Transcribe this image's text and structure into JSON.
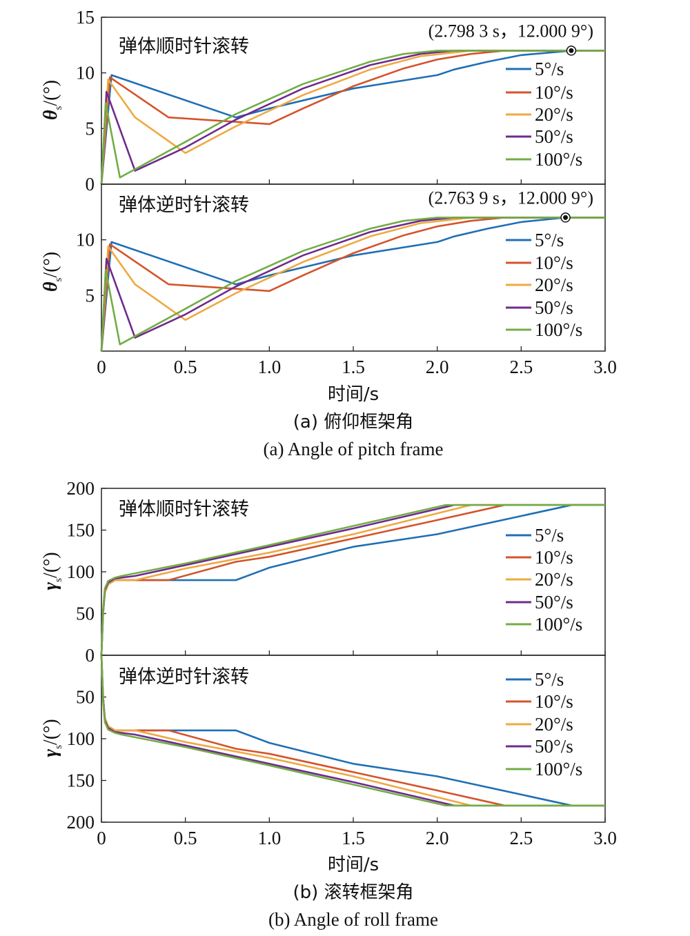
{
  "figure": {
    "caption_a_cn": "(a) 俯仰框架角",
    "caption_a_en": "(a) Angle of pitch frame",
    "caption_b_cn": "(b) 滚转框架角",
    "caption_b_en": "(b) Angle of roll frame",
    "xlabel": "时间/s"
  },
  "colors": {
    "5°/s": "#1f6fb5",
    "10°/s": "#d4532a",
    "20°/s": "#eea942",
    "50°/s": "#6f2a8e",
    "100°/s": "#72ad45"
  },
  "chart_data": [
    {
      "type": "line",
      "title": "弹体顺时针滚转",
      "ylabel_symbol": "θ",
      "ylabel_sub": "s",
      "ylabel_unit": "/(°)",
      "xlim": [
        0,
        3.0
      ],
      "ylim": [
        0,
        15
      ],
      "xticks": [
        "0",
        "0.5",
        "1.0",
        "1.5",
        "2.0",
        "2.5",
        "3.0"
      ],
      "xtick_values": [
        0,
        0.5,
        1.0,
        1.5,
        2.0,
        2.5,
        3.0
      ],
      "yticks": [
        "0",
        "5",
        "10",
        "15"
      ],
      "ytick_values": [
        0,
        5,
        10,
        15
      ],
      "legend_position": "right",
      "annotation": {
        "text": "(2.798 3 s，12.000 9°)",
        "x": 2.7983,
        "y": 12.0009
      },
      "series": [
        {
          "name": "5°/s",
          "x": [
            0,
            0.06,
            0.8,
            1.0,
            1.5,
            2.0,
            2.1,
            2.3,
            2.5,
            2.8,
            3.0
          ],
          "y": [
            0,
            9.8,
            6.0,
            6.8,
            8.6,
            9.8,
            10.3,
            11.0,
            11.6,
            12.0,
            12.0
          ]
        },
        {
          "name": "10°/s",
          "x": [
            0,
            0.05,
            0.4,
            1.0,
            1.2,
            1.5,
            1.8,
            2.0,
            2.2,
            2.4,
            3.0
          ],
          "y": [
            0,
            9.6,
            6.0,
            5.4,
            6.8,
            8.8,
            10.4,
            11.2,
            11.7,
            12.0,
            12.0
          ]
        },
        {
          "name": "20°/s",
          "x": [
            0,
            0.04,
            0.2,
            0.5,
            0.8,
            1.2,
            1.6,
            1.9,
            2.2,
            3.0
          ],
          "y": [
            0,
            9.4,
            6.0,
            2.8,
            5.2,
            8.0,
            10.3,
            11.5,
            12.0,
            12.0
          ]
        },
        {
          "name": "50°/s",
          "x": [
            0,
            0.03,
            0.2,
            0.5,
            0.8,
            1.2,
            1.6,
            1.9,
            2.1,
            3.0
          ],
          "y": [
            0,
            8.3,
            1.2,
            3.3,
            5.8,
            8.6,
            10.7,
            11.7,
            12.0,
            12.0
          ]
        },
        {
          "name": "100°/s",
          "x": [
            0,
            0.025,
            0.11,
            0.5,
            0.8,
            1.2,
            1.6,
            1.8,
            2.0,
            3.0
          ],
          "y": [
            0,
            7.3,
            0.6,
            3.8,
            6.3,
            9.0,
            11.0,
            11.7,
            12.0,
            12.0
          ]
        }
      ]
    },
    {
      "type": "line",
      "title": "弹体逆时针滚转",
      "ylabel_symbol": "θ",
      "ylabel_sub": "s",
      "ylabel_unit": "/(°)",
      "xlim": [
        0,
        3.0
      ],
      "ylim": [
        0,
        15
      ],
      "xticks": [
        "0",
        "0.5",
        "1.0",
        "1.5",
        "2.0",
        "2.5",
        "3.0"
      ],
      "xtick_values": [
        0,
        0.5,
        1.0,
        1.5,
        2.0,
        2.5,
        3.0
      ],
      "yticks": [
        "5",
        "10"
      ],
      "ytick_values": [
        5,
        10
      ],
      "legend_position": "right",
      "annotation": {
        "text": "(2.763 9 s，12.000 9°)",
        "x": 2.7639,
        "y": 12.0009
      },
      "series": [
        {
          "name": "5°/s",
          "x": [
            0,
            0.06,
            0.8,
            1.0,
            1.5,
            2.0,
            2.1,
            2.3,
            2.5,
            2.76,
            3.0
          ],
          "y": [
            0,
            9.8,
            6.0,
            6.8,
            8.6,
            9.8,
            10.3,
            11.0,
            11.6,
            12.0,
            12.0
          ]
        },
        {
          "name": "10°/s",
          "x": [
            0,
            0.05,
            0.4,
            1.0,
            1.2,
            1.5,
            1.8,
            2.0,
            2.2,
            2.4,
            3.0
          ],
          "y": [
            0,
            9.6,
            6.0,
            5.4,
            6.8,
            8.8,
            10.4,
            11.2,
            11.7,
            12.0,
            12.0
          ]
        },
        {
          "name": "20°/s",
          "x": [
            0,
            0.04,
            0.2,
            0.5,
            0.8,
            1.2,
            1.6,
            1.9,
            2.2,
            3.0
          ],
          "y": [
            0,
            9.4,
            6.0,
            2.8,
            5.2,
            8.0,
            10.3,
            11.5,
            12.0,
            12.0
          ]
        },
        {
          "name": "50°/s",
          "x": [
            0,
            0.03,
            0.2,
            0.5,
            0.8,
            1.2,
            1.6,
            1.9,
            2.1,
            3.0
          ],
          "y": [
            0,
            8.3,
            1.2,
            3.3,
            5.8,
            8.6,
            10.7,
            11.7,
            12.0,
            12.0
          ]
        },
        {
          "name": "100°/s",
          "x": [
            0,
            0.025,
            0.11,
            0.5,
            0.8,
            1.2,
            1.6,
            1.8,
            2.0,
            3.0
          ],
          "y": [
            0,
            7.3,
            0.6,
            3.8,
            6.3,
            9.0,
            11.0,
            11.7,
            12.0,
            12.0
          ]
        }
      ]
    },
    {
      "type": "line",
      "title": "弹体顺时针滚转",
      "ylabel_symbol": "γ",
      "ylabel_sub": "s",
      "ylabel_unit": "/(°)",
      "xlim": [
        0,
        3.0
      ],
      "ylim": [
        0,
        200
      ],
      "xticks": [
        "0",
        "0.5",
        "1.0",
        "1.5",
        "2.0",
        "2.5",
        "3.0"
      ],
      "xtick_values": [
        0,
        0.5,
        1.0,
        1.5,
        2.0,
        2.5,
        3.0
      ],
      "yticks": [
        "0",
        "50",
        "100",
        "150",
        "200"
      ],
      "ytick_values": [
        0,
        50,
        100,
        150,
        200
      ],
      "legend_position": "right",
      "series": [
        {
          "name": "5°/s",
          "x": [
            0,
            0.01,
            0.02,
            0.04,
            0.08,
            0.8,
            1.0,
            1.5,
            2.0,
            2.8,
            3.0
          ],
          "y": [
            0,
            50,
            75,
            85,
            90,
            90,
            105,
            130,
            145,
            180,
            180
          ]
        },
        {
          "name": "10°/s",
          "x": [
            0,
            0.01,
            0.02,
            0.04,
            0.08,
            0.4,
            0.8,
            1.0,
            1.5,
            2.0,
            2.4,
            3.0
          ],
          "y": [
            0,
            50,
            75,
            85,
            90,
            90,
            112,
            118,
            140,
            162,
            180,
            180
          ]
        },
        {
          "name": "20°/s",
          "x": [
            0,
            0.01,
            0.02,
            0.04,
            0.08,
            0.2,
            0.5,
            1.0,
            1.5,
            2.2,
            3.0
          ],
          "y": [
            0,
            50,
            75,
            85,
            90,
            90,
            104,
            123,
            145,
            180,
            180
          ]
        },
        {
          "name": "50°/s",
          "x": [
            0,
            0.01,
            0.02,
            0.04,
            0.08,
            0.2,
            0.5,
            1.0,
            1.5,
            2.1,
            3.0
          ],
          "y": [
            0,
            52,
            78,
            87,
            92,
            95,
            108,
            130,
            152,
            180,
            180
          ]
        },
        {
          "name": "100°/s",
          "x": [
            0,
            0.01,
            0.02,
            0.04,
            0.08,
            0.12,
            0.5,
            1.0,
            1.5,
            2.05,
            3.0
          ],
          "y": [
            0,
            55,
            80,
            89,
            93,
            95,
            110,
            132,
            155,
            180,
            180
          ]
        }
      ]
    },
    {
      "type": "line",
      "title": "弹体逆时针滚转",
      "ylabel_symbol": "γ",
      "ylabel_sub": "s",
      "ylabel_unit": "/(°)",
      "xlim": [
        0,
        3.0
      ],
      "ylim": [
        0,
        200
      ],
      "y_inverted": true,
      "xticks": [
        "0",
        "0.5",
        "1.0",
        "1.5",
        "2.0",
        "2.5",
        "3.0"
      ],
      "xtick_values": [
        0,
        0.5,
        1.0,
        1.5,
        2.0,
        2.5,
        3.0
      ],
      "yticks": [
        "50",
        "100",
        "150",
        "200"
      ],
      "ytick_values": [
        50,
        100,
        150,
        200
      ],
      "legend_position": "top-right",
      "series": [
        {
          "name": "5°/s",
          "x": [
            0,
            0.01,
            0.02,
            0.04,
            0.08,
            0.8,
            1.0,
            1.5,
            2.0,
            2.8,
            3.0
          ],
          "y": [
            0,
            50,
            75,
            85,
            90,
            90,
            105,
            130,
            145,
            180,
            180
          ]
        },
        {
          "name": "10°/s",
          "x": [
            0,
            0.01,
            0.02,
            0.04,
            0.08,
            0.4,
            0.8,
            1.0,
            1.5,
            2.0,
            2.4,
            3.0
          ],
          "y": [
            0,
            50,
            75,
            85,
            90,
            90,
            112,
            118,
            140,
            162,
            180,
            180
          ]
        },
        {
          "name": "20°/s",
          "x": [
            0,
            0.01,
            0.02,
            0.04,
            0.08,
            0.2,
            0.5,
            1.0,
            1.5,
            2.2,
            3.0
          ],
          "y": [
            0,
            50,
            75,
            85,
            90,
            90,
            104,
            123,
            145,
            180,
            180
          ]
        },
        {
          "name": "50°/s",
          "x": [
            0,
            0.01,
            0.02,
            0.04,
            0.08,
            0.2,
            0.5,
            1.0,
            1.5,
            2.1,
            3.0
          ],
          "y": [
            0,
            52,
            78,
            87,
            92,
            95,
            108,
            130,
            152,
            180,
            180
          ]
        },
        {
          "name": "100°/s",
          "x": [
            0,
            0.01,
            0.02,
            0.04,
            0.08,
            0.12,
            0.5,
            1.0,
            1.5,
            2.05,
            3.0
          ],
          "y": [
            0,
            55,
            80,
            89,
            93,
            95,
            110,
            132,
            155,
            180,
            180
          ]
        }
      ]
    }
  ]
}
